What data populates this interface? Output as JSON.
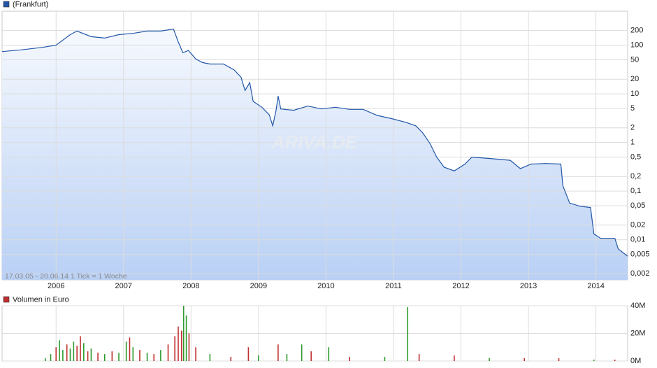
{
  "chart_data": [
    {
      "type": "line",
      "log_scale": true,
      "grid": true,
      "note": "17.03.05 - 20.06.14   1 Tick = 1 Woche",
      "watermark": "ARIVA.DE",
      "x": [
        2005.2,
        2005.48,
        2005.79,
        2006.0,
        2006.21,
        2006.31,
        2006.52,
        2006.72,
        2006.93,
        2007.14,
        2007.35,
        2007.55,
        2007.74,
        2007.81,
        2007.88,
        2007.96,
        2008.07,
        2008.17,
        2008.28,
        2008.48,
        2008.64,
        2008.74,
        2008.8,
        2008.87,
        2008.92,
        2009.05,
        2009.16,
        2009.21,
        2009.26,
        2009.29,
        2009.33,
        2009.52,
        2009.73,
        2009.93,
        2010.14,
        2010.35,
        2010.55,
        2010.76,
        2010.97,
        2011.18,
        2011.33,
        2011.43,
        2011.54,
        2011.64,
        2011.75,
        2011.9,
        2012.06,
        2012.16,
        2012.42,
        2012.73,
        2012.88,
        2013.04,
        2013.25,
        2013.48,
        2013.51,
        2013.61,
        2013.76,
        2013.92,
        2013.97,
        2014.07,
        2014.28,
        2014.33,
        2014.47
      ],
      "series": [
        {
          "name": "(Frankfurt)",
          "color": "#2256a8",
          "values": [
            74,
            80,
            90,
            100,
            165,
            195,
            150,
            140,
            165,
            175,
            195,
            195,
            215,
            117,
            70,
            78,
            52,
            44,
            41,
            41,
            31,
            22,
            11.7,
            17,
            7,
            5.3,
            3.7,
            2.2,
            4.6,
            9.0,
            4.9,
            4.6,
            5.6,
            4.9,
            5.3,
            4.8,
            4.8,
            3.6,
            3.1,
            2.6,
            2.2,
            1.6,
            0.96,
            0.5,
            0.31,
            0.26,
            0.36,
            0.5,
            0.47,
            0.43,
            0.29,
            0.36,
            0.37,
            0.36,
            0.13,
            0.057,
            0.049,
            0.046,
            0.0132,
            0.0107,
            0.0107,
            0.0065,
            0.0046
          ]
        }
      ],
      "xlim": [
        2005.2,
        2014.47
      ],
      "xticks": [
        2006,
        2007,
        2008,
        2009,
        2010,
        2011,
        2012,
        2013,
        2014
      ],
      "ylim": [
        0.0015,
        500
      ],
      "yticks": [
        200,
        100,
        50,
        20,
        10,
        5,
        2,
        1,
        {
          "value": 0.5,
          "label": "0,5"
        },
        {
          "value": 0.2,
          "label": "0,2"
        },
        {
          "value": 0.1,
          "label": "0,1"
        },
        {
          "value": 0.05,
          "label": "0,05"
        },
        {
          "value": 0.02,
          "label": "0,02"
        },
        {
          "value": 0.01,
          "label": "0,01"
        },
        {
          "value": 0.005,
          "label": "0,005"
        },
        {
          "value": 0.002,
          "label": "0,002"
        }
      ]
    },
    {
      "type": "bar",
      "grid": true,
      "x": [
        2005.84,
        2005.92,
        2006.0,
        2006.05,
        2006.1,
        2006.16,
        2006.21,
        2006.26,
        2006.31,
        2006.36,
        2006.41,
        2006.47,
        2006.52,
        2006.62,
        2006.72,
        2006.83,
        2006.93,
        2007.04,
        2007.09,
        2007.14,
        2007.24,
        2007.35,
        2007.45,
        2007.55,
        2007.66,
        2007.76,
        2007.81,
        2007.86,
        2007.89,
        2007.93,
        2007.97,
        2008.07,
        2008.28,
        2008.59,
        2008.85,
        2009.0,
        2009.29,
        2009.42,
        2009.64,
        2009.78,
        2010.04,
        2010.35,
        2010.87,
        2011.21,
        2011.38,
        2011.9,
        2012.42,
        2012.94,
        2013.45,
        2013.97,
        2014.28
      ],
      "series": [
        {
          "name": "Volumen in Euro",
          "color": "#c03030",
          "values": [
            2000000,
            5000000,
            10000000,
            15000000,
            8000000,
            12000000,
            9000000,
            14000000,
            11000000,
            18000000,
            13000000,
            7000000,
            9000000,
            6000000,
            5000000,
            7000000,
            6000000,
            14000000,
            17000000,
            10000000,
            8000000,
            6000000,
            5000000,
            8000000,
            12000000,
            18000000,
            25000000,
            22000000,
            40000000,
            33000000,
            20000000,
            10000000,
            5000000,
            3000000,
            10000000,
            4000000,
            12000000,
            5000000,
            12000000,
            7000000,
            10000000,
            3000000,
            3000000,
            39000000,
            5000000,
            4000000,
            2000000,
            2000000,
            2000000,
            1000000,
            1000000
          ],
          "bar_colors": [
            "#2e9a2e",
            "#2e9a2e",
            "#c03030",
            "#2e9a2e",
            "#2e9a2e",
            "#c03030",
            "#2e9a2e",
            "#2e9a2e",
            "#c03030",
            "#c03030",
            "#2e9a2e",
            "#c03030",
            "#2e9a2e",
            "#c03030",
            "#2e9a2e",
            "#c03030",
            "#2e9a2e",
            "#2e9a2e",
            "#c03030",
            "#2e9a2e",
            "#c03030",
            "#2e9a2e",
            "#c03030",
            "#2e9a2e",
            "#c03030",
            "#c03030",
            "#c03030",
            "#c03030",
            "#2e9a2e",
            "#2e9a2e",
            "#c03030",
            "#c03030",
            "#2e9a2e",
            "#c03030",
            "#c03030",
            "#2e9a2e",
            "#c03030",
            "#2e9a2e",
            "#2e9a2e",
            "#c03030",
            "#2e9a2e",
            "#c03030",
            "#2e9a2e",
            "#2e9a2e",
            "#c03030",
            "#c03030",
            "#2e9a2e",
            "#c03030",
            "#c03030",
            "#2e9a2e",
            "#c03030"
          ]
        }
      ],
      "xlim": [
        2005.2,
        2014.47
      ],
      "xticks": [
        2006,
        2007,
        2008,
        2009,
        2010,
        2011,
        2012,
        2013,
        2014
      ],
      "ylim": [
        0,
        40000000
      ],
      "yticks": [
        {
          "value": 0,
          "label": "0M"
        },
        {
          "value": 20000000,
          "label": "20M"
        },
        {
          "value": 40000000,
          "label": "40M"
        }
      ]
    }
  ]
}
